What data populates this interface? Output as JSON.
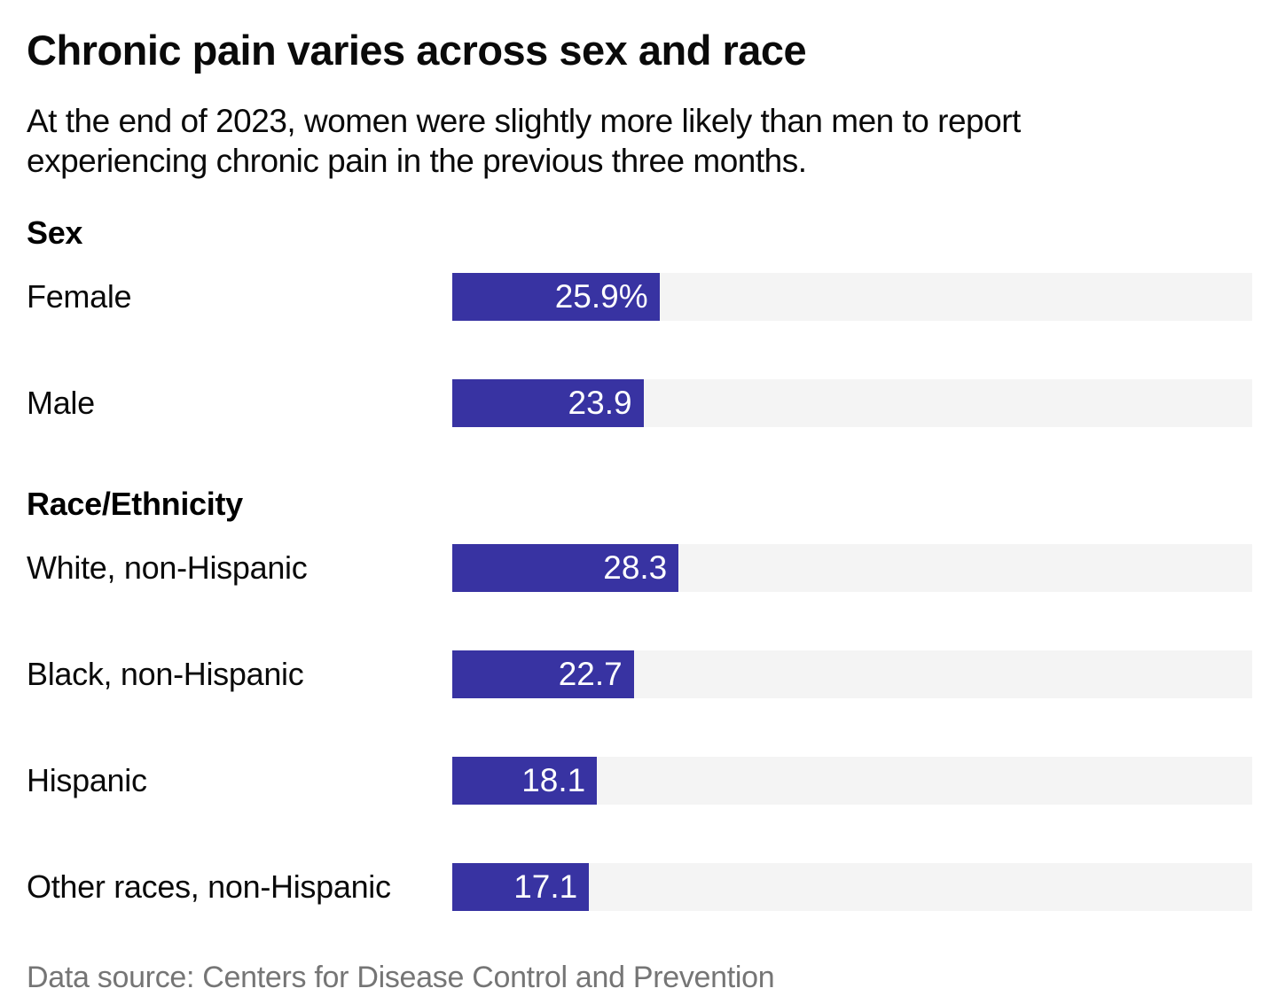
{
  "title": "Chronic pain varies across sex and race",
  "subtitle": "At the end of 2023, women were slightly more likely than men to report experiencing chronic pain in the previous three months.",
  "footer": "Data source: Centers for Disease Control and Prevention",
  "colors": {
    "bar": "#3833a2",
    "track": "#f4f4f4",
    "value_text": "#ffffff",
    "footer_text": "#757575"
  },
  "chart_data": {
    "type": "bar",
    "orientation": "horizontal",
    "unit": "percent",
    "xlim": [
      0,
      100
    ],
    "max": 100,
    "grid": false,
    "legend": false,
    "groups": [
      {
        "label": "Sex",
        "rows": [
          {
            "label": "Female",
            "value": 25.9,
            "display": "25.9%"
          },
          {
            "label": "Male",
            "value": 23.9,
            "display": "23.9"
          }
        ]
      },
      {
        "label": "Race/Ethnicity",
        "rows": [
          {
            "label": "White, non-Hispanic",
            "value": 28.3,
            "display": "28.3"
          },
          {
            "label": "Black, non-Hispanic",
            "value": 22.7,
            "display": "22.7"
          },
          {
            "label": "Hispanic",
            "value": 18.1,
            "display": "18.1"
          },
          {
            "label": "Other races, non-Hispanic",
            "value": 17.1,
            "display": "17.1"
          }
        ]
      }
    ]
  }
}
